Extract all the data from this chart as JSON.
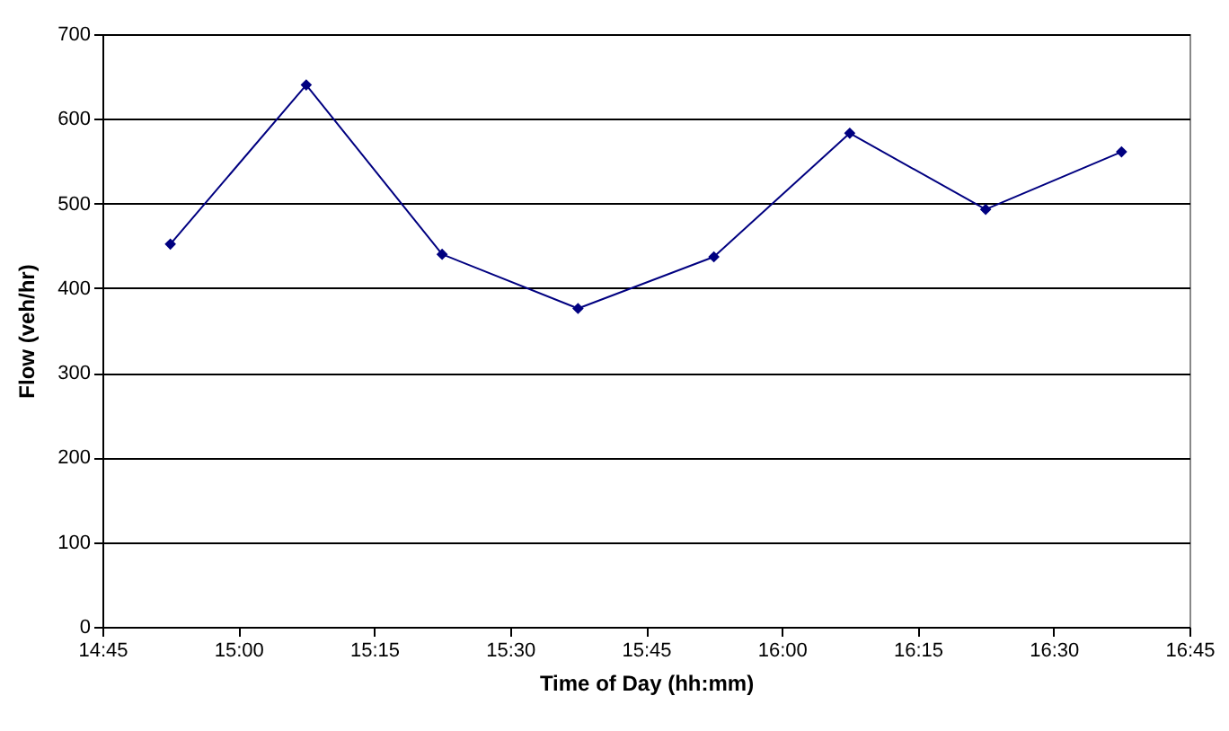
{
  "chart_data": {
    "type": "line",
    "xlabel": "Time of Day (hh:mm)",
    "ylabel": "Flow (veh/hr)",
    "x": [
      14.875,
      15.125,
      15.375,
      15.625,
      15.875,
      16.125,
      16.375,
      16.625
    ],
    "series": [
      {
        "color": "#000080",
        "values": [
          452,
          640,
          440,
          376,
          437,
          583,
          493,
          561
        ]
      }
    ],
    "xlim": [
      14.75,
      16.75
    ],
    "xticks": [
      {
        "value": 14.75,
        "label": "14:45"
      },
      {
        "value": 15,
        "label": "15:00"
      },
      {
        "value": 15.25,
        "label": "15:15"
      },
      {
        "value": 15.5,
        "label": "15:30"
      },
      {
        "value": 15.75,
        "label": "15:45"
      },
      {
        "value": 16,
        "label": "16:00"
      },
      {
        "value": 16.25,
        "label": "16:15"
      },
      {
        "value": 16.5,
        "label": "16:30"
      },
      {
        "value": 16.75,
        "label": "16:45"
      }
    ],
    "ylim": [
      0,
      700
    ],
    "yticks": [
      0,
      100,
      200,
      300,
      400,
      500,
      600,
      700
    ],
    "grid": "y",
    "marker": "diamond",
    "line_style": "solid"
  }
}
